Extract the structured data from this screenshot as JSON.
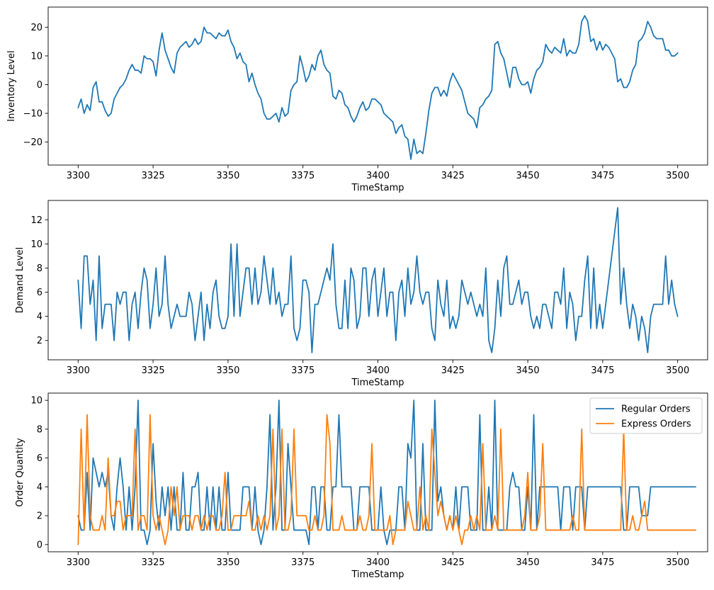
{
  "chart_data": [
    {
      "type": "line",
      "xlabel": "TimeStamp",
      "ylabel": "Inventory Level",
      "xlim": [
        3290,
        3510
      ],
      "ylim": [
        -28,
        27
      ],
      "xticks": [
        3300,
        3325,
        3350,
        3375,
        3400,
        3425,
        3450,
        3475,
        3500
      ],
      "yticks": [
        -20,
        -10,
        0,
        10,
        20
      ],
      "legend": null,
      "series": [
        {
          "color": "#1f77b4",
          "x_start": 3300,
          "values": [
            -8,
            -5,
            -10,
            -7,
            -9,
            -1,
            1,
            -6,
            -6,
            -9,
            -11,
            -10,
            -5,
            -3,
            -1,
            0,
            2,
            5,
            7,
            5,
            5,
            4,
            10,
            9,
            9,
            8,
            3,
            12,
            18,
            12,
            9,
            6,
            4,
            11,
            13,
            14,
            15,
            13,
            14,
            16,
            14,
            15,
            20,
            18,
            18,
            17,
            16,
            18,
            17,
            17,
            19,
            15,
            13,
            9,
            11,
            8,
            7,
            1,
            4,
            0,
            -3,
            -5,
            -10,
            -12,
            -12,
            -11,
            -10,
            -13,
            -8,
            -11,
            -10,
            -2,
            0,
            1,
            10,
            6,
            1,
            3,
            7,
            5,
            10,
            12,
            7,
            5,
            4,
            -4,
            -5,
            -2,
            -3,
            -7,
            -8,
            -11,
            -13,
            -11,
            -8,
            -6,
            -9,
            -8,
            -5,
            -5,
            -6,
            -7,
            -10,
            -11,
            -12,
            -13,
            -17,
            -15,
            -14,
            -18,
            -19,
            -26,
            -19,
            -24,
            -23,
            -24,
            -17,
            -9,
            -3,
            -1,
            -1,
            -4,
            -2,
            -4,
            1,
            4,
            2,
            0,
            -2,
            -6,
            -10,
            -11,
            -12,
            -15,
            -8,
            -7,
            -5,
            -4,
            -2,
            14,
            15,
            11,
            9,
            4,
            -1,
            6,
            6,
            2,
            0,
            0,
            1,
            -3,
            2,
            5,
            6,
            8,
            14,
            12,
            11,
            13,
            12,
            11,
            16,
            10,
            12,
            11,
            11,
            14,
            22,
            24,
            22,
            15,
            16,
            12,
            15,
            12,
            14,
            13,
            11,
            9,
            1,
            2,
            -1,
            -1,
            1,
            5,
            7,
            15,
            16,
            18,
            22,
            20,
            17,
            16,
            16,
            16,
            12,
            12,
            10,
            10,
            11
          ]
        }
      ]
    },
    {
      "type": "line",
      "xlabel": "TimeStamp",
      "ylabel": "Demand Level",
      "xlim": [
        3290,
        3510
      ],
      "ylim": [
        0.4,
        13.6
      ],
      "xticks": [
        3300,
        3325,
        3350,
        3375,
        3400,
        3425,
        3450,
        3475,
        3500
      ],
      "yticks": [
        2,
        4,
        6,
        8,
        10,
        12
      ],
      "legend": null,
      "series": [
        {
          "color": "#1f77b4",
          "x_start": 3300,
          "values": [
            7,
            3,
            9,
            9,
            5,
            7,
            2,
            9,
            3,
            5,
            5,
            5,
            2,
            6,
            5,
            6,
            6,
            2,
            5,
            6,
            3,
            6,
            8,
            7,
            3,
            5,
            8,
            4,
            5,
            9,
            5,
            3,
            4,
            5,
            4,
            4,
            4,
            6,
            5,
            2,
            4,
            6,
            2,
            5,
            3,
            6,
            7,
            4,
            3,
            3,
            4,
            10,
            4,
            10,
            4,
            6,
            8,
            8,
            5,
            8,
            5,
            6,
            9,
            7,
            5,
            8,
            5,
            6,
            4,
            5,
            5,
            9,
            3,
            2,
            3,
            7,
            7,
            6,
            1,
            5,
            5,
            6,
            7,
            8,
            7,
            10,
            5,
            3,
            3,
            7,
            3,
            8,
            7,
            3,
            4,
            8,
            8,
            4,
            7,
            8,
            4,
            6,
            8,
            4,
            6,
            6,
            2,
            6,
            7,
            4,
            8,
            5,
            6,
            9,
            6,
            5,
            6,
            6,
            3,
            2,
            7,
            5,
            4,
            7,
            3,
            4,
            3,
            4,
            7,
            6,
            5,
            6,
            5,
            4,
            5,
            4,
            8,
            2,
            1,
            3,
            7,
            4,
            8,
            9,
            5,
            5,
            6,
            7,
            5,
            6,
            6,
            4,
            3,
            4,
            3,
            5,
            5,
            4,
            3,
            6,
            6,
            5,
            8,
            3,
            6,
            5,
            2,
            4,
            4,
            7,
            9,
            3,
            8,
            3,
            5,
            3,
            5,
            7,
            9,
            11,
            13,
            5,
            8,
            5,
            3,
            5,
            4,
            2,
            4,
            3,
            1,
            4,
            5,
            5,
            5,
            5,
            9,
            5,
            7,
            5,
            4
          ]
        }
      ]
    },
    {
      "type": "line",
      "xlabel": "TimeStamp",
      "ylabel": "Order Quantity",
      "xlim": [
        3290,
        3510
      ],
      "ylim": [
        -0.5,
        10.5
      ],
      "xticks": [
        3300,
        3325,
        3350,
        3375,
        3400,
        3425,
        3450,
        3475,
        3500
      ],
      "yticks": [
        0,
        2,
        4,
        6,
        8,
        10
      ],
      "legend": "top-right",
      "series": [
        {
          "name": "Regular Orders",
          "color": "#1f77b4",
          "x_start": 3300,
          "values": [
            2,
            1,
            1,
            5,
            1,
            6,
            5,
            4,
            5,
            4,
            5,
            2,
            1,
            4,
            6,
            4,
            1,
            4,
            1,
            4,
            10,
            1,
            1,
            0,
            1,
            7,
            3,
            1,
            4,
            2,
            4,
            1,
            4,
            1,
            1,
            5,
            1,
            1,
            4,
            4,
            5,
            1,
            1,
            4,
            1,
            4,
            1,
            4,
            1,
            1,
            5,
            1,
            1,
            1,
            1,
            4,
            4,
            4,
            1,
            4,
            1,
            0,
            1,
            4,
            9,
            1,
            4,
            10,
            1,
            1,
            7,
            4,
            1,
            1,
            1,
            1,
            1,
            0,
            4,
            4,
            1,
            4,
            4,
            1,
            1,
            4,
            4,
            9,
            4,
            4,
            4,
            4,
            1,
            1,
            4,
            4,
            4,
            4,
            1,
            1,
            1,
            4,
            1,
            0,
            1,
            1,
            1,
            4,
            4,
            1,
            7,
            6,
            10,
            1,
            1,
            7,
            1,
            1,
            1,
            10,
            3,
            4,
            2,
            1,
            2,
            1,
            4,
            1,
            4,
            4,
            4,
            1,
            1,
            1,
            9,
            1,
            1,
            4,
            1,
            10,
            1,
            1,
            1,
            1,
            4,
            5,
            4,
            4,
            1,
            1,
            4,
            1,
            9,
            1,
            4,
            4,
            4,
            4,
            4,
            4,
            4,
            1,
            4,
            4,
            4,
            1,
            4,
            4,
            4,
            1,
            4,
            4,
            4,
            4,
            4,
            4,
            4,
            4,
            4,
            4,
            4,
            4,
            1,
            1,
            4,
            4,
            4,
            4,
            2,
            2,
            2,
            4,
            4,
            4,
            4,
            4,
            4,
            4,
            4,
            4,
            4,
            4,
            4,
            4,
            4,
            4,
            4
          ]
        },
        {
          "name": "Express Orders",
          "color": "#ff7f0e",
          "x_start": 3300,
          "values": [
            0,
            8,
            1,
            9,
            2,
            1,
            1,
            1,
            2,
            1,
            6,
            2,
            2,
            3,
            3,
            1,
            2,
            2,
            2,
            8,
            1,
            2,
            2,
            1,
            9,
            2,
            1,
            2,
            1,
            0,
            1,
            4,
            2,
            4,
            1,
            2,
            2,
            2,
            1,
            2,
            2,
            1,
            2,
            1,
            2,
            2,
            1,
            1,
            2,
            5,
            1,
            1,
            2,
            2,
            2,
            2,
            2,
            3,
            1,
            1,
            2,
            1,
            2,
            1,
            2,
            8,
            1,
            2,
            8,
            1,
            1,
            2,
            8,
            2,
            2,
            2,
            2,
            1,
            1,
            2,
            1,
            1,
            2,
            9,
            7,
            1,
            1,
            1,
            2,
            1,
            1,
            1,
            1,
            1,
            2,
            1,
            1,
            2,
            7,
            1,
            1,
            1,
            1,
            1,
            2,
            0,
            1,
            1,
            1,
            1,
            3,
            2,
            1,
            1,
            4,
            1,
            2,
            1,
            8,
            5,
            2,
            3,
            2,
            1,
            2,
            1,
            2,
            1,
            0,
            1,
            1,
            2,
            1,
            2,
            1,
            7,
            1,
            1,
            1,
            2,
            1,
            8,
            1,
            1,
            1,
            1,
            1,
            1,
            1,
            2,
            5,
            1,
            1,
            1,
            2,
            7,
            1,
            1,
            1,
            1,
            1,
            1,
            1,
            1,
            1,
            2,
            1,
            1,
            8,
            1,
            1,
            1,
            1,
            1,
            1,
            1,
            1,
            1,
            1,
            1,
            1,
            1,
            8,
            1,
            1,
            2,
            1,
            1,
            2,
            3,
            1,
            1,
            1,
            1,
            1,
            1,
            1,
            1,
            1,
            1,
            1,
            1,
            1,
            1,
            1,
            1,
            1
          ]
        }
      ]
    }
  ]
}
